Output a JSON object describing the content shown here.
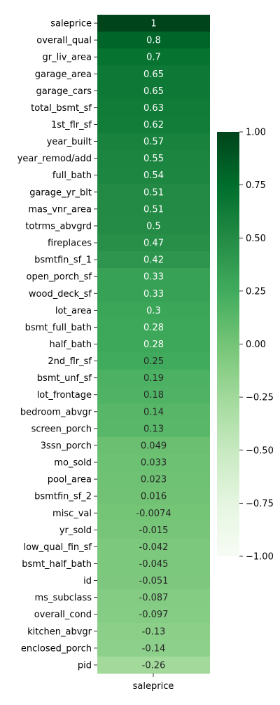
{
  "chart_data": {
    "type": "heatmap",
    "column": "saleprice",
    "rows": [
      "saleprice",
      "overall_qual",
      "gr_liv_area",
      "garage_area",
      "garage_cars",
      "total_bsmt_sf",
      "1st_flr_sf",
      "year_built",
      "year_remod/add",
      "full_bath",
      "garage_yr_blt",
      "mas_vnr_area",
      "totrms_abvgrd",
      "fireplaces",
      "bsmtfin_sf_1",
      "open_porch_sf",
      "wood_deck_sf",
      "lot_area",
      "bsmt_full_bath",
      "half_bath",
      "2nd_flr_sf",
      "bsmt_unf_sf",
      "lot_frontage",
      "bedroom_abvgr",
      "screen_porch",
      "3ssn_porch",
      "mo_sold",
      "pool_area",
      "bsmtfin_sf_2",
      "misc_val",
      "yr_sold",
      "low_qual_fin_sf",
      "bsmt_half_bath",
      "id",
      "ms_subclass",
      "overall_cond",
      "kitchen_abvgr",
      "enclosed_porch",
      "pid"
    ],
    "values": [
      1,
      0.8,
      0.7,
      0.65,
      0.65,
      0.63,
      0.62,
      0.57,
      0.55,
      0.54,
      0.51,
      0.51,
      0.5,
      0.47,
      0.42,
      0.33,
      0.33,
      0.3,
      0.28,
      0.28,
      0.25,
      0.19,
      0.18,
      0.14,
      0.13,
      0.049,
      0.033,
      0.023,
      0.016,
      -0.0074,
      -0.015,
      -0.042,
      -0.045,
      -0.051,
      -0.087,
      -0.097,
      -0.13,
      -0.14,
      -0.26
    ],
    "labels": [
      "1",
      "0.8",
      "0.7",
      "0.65",
      "0.65",
      "0.63",
      "0.62",
      "0.57",
      "0.55",
      "0.54",
      "0.51",
      "0.51",
      "0.5",
      "0.47",
      "0.42",
      "0.33",
      "0.33",
      "0.3",
      "0.28",
      "0.28",
      "0.25",
      "0.19",
      "0.18",
      "0.14",
      "0.13",
      "0.049",
      "0.033",
      "0.023",
      "0.016",
      "-0.0074",
      "-0.015",
      "-0.042",
      "-0.045",
      "-0.051",
      "-0.087",
      "-0.097",
      "-0.13",
      "-0.14",
      "-0.26"
    ],
    "colormap": "Greens",
    "vmin": -1,
    "vmax": 1,
    "colorbar_ticks": [
      1,
      0.75,
      0.5,
      0.25,
      0,
      -0.25,
      -0.5,
      -0.75,
      -1
    ],
    "colorbar_tick_labels": [
      "1.00",
      "0.75",
      "0.50",
      "0.25",
      "0.00",
      "−0.25",
      "−0.50",
      "−0.75",
      "−1.00"
    ]
  }
}
